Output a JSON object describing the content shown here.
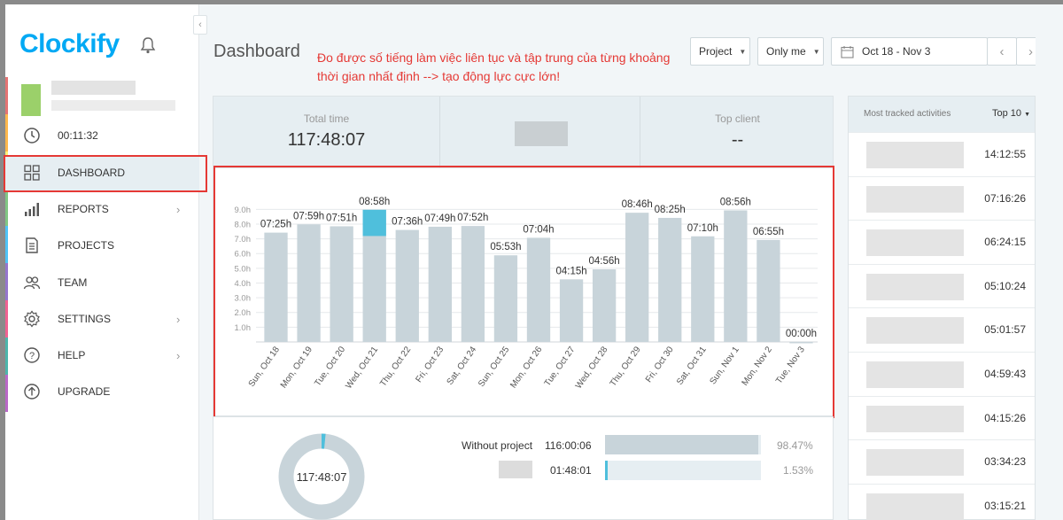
{
  "app": {
    "logo_text": "lockify",
    "logo_initial": "C"
  },
  "sidebar": {
    "timer_value": "00:11:32",
    "items": [
      {
        "label": "DASHBOARD",
        "icon": "grid-icon",
        "active": true,
        "chevron": false
      },
      {
        "label": "REPORTS",
        "icon": "bar-chart-icon",
        "active": false,
        "chevron": true
      },
      {
        "label": "PROJECTS",
        "icon": "document-icon",
        "active": false,
        "chevron": false
      },
      {
        "label": "TEAM",
        "icon": "team-icon",
        "active": false,
        "chevron": false
      },
      {
        "label": "SETTINGS",
        "icon": "gear-icon",
        "active": false,
        "chevron": true
      },
      {
        "label": "HELP",
        "icon": "help-icon",
        "active": false,
        "chevron": true
      },
      {
        "label": "UPGRADE",
        "icon": "upgrade-icon",
        "active": false,
        "chevron": false
      }
    ],
    "accent_colors": [
      "#e57373",
      "#ffb74d",
      "#fff176",
      "#81c784",
      "#4fc3f7",
      "#9575cd",
      "#f06292",
      "#4db6ac",
      "#ba68c8"
    ]
  },
  "header": {
    "title": "Dashboard",
    "annotation": "Đo được số tiếng làm việc liên tục và tập trung của từng khoảng thời gian nhất định --> tạo động lực cực lớn!",
    "project_dropdown": "Project",
    "scope_dropdown": "Only me",
    "date_range": "Oct 18 - Nov 3",
    "prev_label": "‹",
    "next_label": "›"
  },
  "stats": {
    "total_time_label": "Total time",
    "total_time_value": "117:48:07",
    "top_client_label": "Top client",
    "top_client_value": "--"
  },
  "activities": {
    "title": "Most tracked activities",
    "filter": "Top 10",
    "times": [
      "14:12:55",
      "07:16:26",
      "06:24:15",
      "05:10:24",
      "05:01:57",
      "04:59:43",
      "04:15:26",
      "03:34:23",
      "03:15:21"
    ]
  },
  "chart_data": {
    "type": "bar",
    "categories": [
      "Sun, Oct 18",
      "Mon, Oct 19",
      "Tue, Oct 20",
      "Wed, Oct 21",
      "Thu, Oct 22",
      "Fri, Oct 23",
      "Sat, Oct 24",
      "Sun, Oct 25",
      "Mon, Oct 26",
      "Tue, Oct 27",
      "Wed, Oct 28",
      "Thu, Oct 29",
      "Fri, Oct 30",
      "Sat, Oct 31",
      "Sun, Nov 1",
      "Mon, Nov 2",
      "Tue, Nov 3"
    ],
    "values": [
      7.42,
      7.98,
      7.85,
      8.97,
      7.6,
      7.82,
      7.87,
      5.88,
      7.07,
      4.25,
      4.93,
      8.77,
      8.42,
      7.17,
      8.93,
      6.92,
      0
    ],
    "highlight_values": [
      0,
      0,
      0,
      1.78,
      0,
      0,
      0,
      0,
      0,
      0,
      0,
      0,
      0,
      0,
      0,
      0,
      0
    ],
    "data_labels": [
      "07:25h",
      "07:59h",
      "07:51h",
      "08:58h",
      "07:36h",
      "07:49h",
      "07:52h",
      "05:53h",
      "07:04h",
      "04:15h",
      "04:56h",
      "08:46h",
      "08:25h",
      "07:10h",
      "08:56h",
      "06:55h",
      "00:00h"
    ],
    "y_ticks": [
      "1.0h",
      "2.0h",
      "3.0h",
      "4.0h",
      "5.0h",
      "6.0h",
      "7.0h",
      "8.0h",
      "9.0h"
    ],
    "ylim": [
      0,
      9.5
    ],
    "grid": true,
    "colors": {
      "bar": "#c8d4da",
      "highlight": "#4fbfdc",
      "grid": "#e6e9eb"
    }
  },
  "breakdown": {
    "donut_total": "117:48:07",
    "rows": [
      {
        "label": "Without project",
        "time": "116:00:06",
        "pct_label": "98.47%",
        "fraction": 0.9847,
        "color": "#c8d4da"
      },
      {
        "label": "",
        "time": "01:48:01",
        "pct_label": "1.53%",
        "fraction": 0.0153,
        "color": "#4fbfdc"
      }
    ]
  }
}
